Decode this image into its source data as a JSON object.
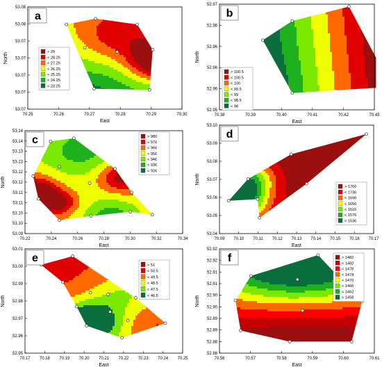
{
  "chart_data": [
    {
      "type": "heatmap",
      "panel_label": "a",
      "xlabel": "East",
      "ylabel": "North",
      "x_ticks": [
        "70.25",
        "70.26",
        "70.27",
        "70.28",
        "70.29",
        "70.30"
      ],
      "y_ticks": [
        "53.08",
        "53.08",
        "53.07",
        "53.07",
        "53.07",
        "53.07",
        "53.07"
      ],
      "legend": [
        "> 29",
        "< 28.25",
        "< 27.25",
        "< 26.25",
        "< 25.25",
        "< 24.25",
        "< 23.25"
      ],
      "legend_colors": [
        "#9b0f0f",
        "#e00000",
        "#ff6a00",
        "#f0ff00",
        "#7be800",
        "#1fb01f",
        "#0a6e3c"
      ],
      "sample_points": [
        [
          70.2625,
          53.0795
        ],
        [
          70.272,
          53.0805
        ],
        [
          70.2855,
          53.0795
        ],
        [
          70.2685,
          53.0755
        ],
        [
          70.279,
          53.0748
        ],
        [
          70.2905,
          53.0752
        ],
        [
          70.2715,
          53.0685
        ],
        [
          70.2895,
          53.0683
        ]
      ]
    },
    {
      "type": "heatmap",
      "panel_label": "b",
      "xlabel": "East",
      "ylabel": "North",
      "x_ticks": [
        "70.38",
        "70.39",
        "70.40",
        "70.41",
        "70.42",
        "70.43"
      ],
      "y_ticks": [
        "52.97",
        "52.96",
        "52.96",
        "52.96",
        "52.96",
        "52.95"
      ],
      "legend": [
        "> 100.5",
        "< 100.5",
        "< 100",
        "< 99.5",
        "< 99",
        "< 98.5",
        "< 98"
      ],
      "legend_colors": [
        "#9b0f0f",
        "#e00000",
        "#ff6a00",
        "#f0ff00",
        "#7be800",
        "#1fb01f",
        "#0a6e3c"
      ],
      "sample_points": [
        [
          70.394,
          52.9645
        ],
        [
          70.4035,
          52.9685
        ],
        [
          70.4218,
          52.9715
        ],
        [
          70.4355,
          52.9548
        ],
        [
          70.4035,
          52.9535
        ]
      ]
    },
    {
      "type": "heatmap",
      "panel_label": "c",
      "xlabel": "East",
      "ylabel": "North",
      "x_ticks": [
        "70.22",
        "70.24",
        "70.26",
        "70.28",
        "70.30",
        "70.32",
        "70.34"
      ],
      "y_ticks": [
        "53.14",
        "53.14",
        "53.13",
        "53.13",
        "53.12",
        "53.12",
        "53.11",
        "53.11",
        "53.10",
        "53.10",
        "53.09"
      ],
      "legend": [
        "> 980",
        "< 976",
        "< 966",
        "< 956",
        "< 946",
        "< 936",
        "< 926"
      ],
      "legend_colors": [
        "#9b0f0f",
        "#e00000",
        "#ff6a00",
        "#f0ff00",
        "#7be800",
        "#1fb01f",
        "#0a6e3c"
      ],
      "sample_points": [
        [
          70.2395,
          53.138
        ],
        [
          70.2572,
          53.1395
        ],
        [
          70.2462,
          53.1262
        ],
        [
          70.2262,
          53.1218
        ],
        [
          70.2692,
          53.1185
        ],
        [
          70.2885,
          53.1252
        ],
        [
          70.3012,
          53.1142
        ],
        [
          70.3168,
          53.1038
        ],
        [
          70.2302,
          53.1112
        ],
        [
          70.2462,
          53.1012
        ],
        [
          70.2702,
          53.1032
        ],
        [
          70.3002,
          53.1052
        ]
      ]
    },
    {
      "type": "heatmap",
      "panel_label": "d",
      "xlabel": "East",
      "ylabel": "North",
      "x_ticks": [
        "70.09",
        "70.10",
        "70.11",
        "70.12",
        "70.13",
        "70.14",
        "70.15",
        "70.16",
        "70.17"
      ],
      "y_ticks": [
        "53.10",
        "53.09",
        "53.08",
        "53.07",
        "53.06",
        "53.05",
        "53.04"
      ],
      "legend": [
        "> 1760",
        "< 1736",
        "< 1696",
        "< 1656",
        "< 1616",
        "< 1576",
        "< 1536"
      ],
      "legend_colors": [
        "#9b0f0f",
        "#e00000",
        "#ff6a00",
        "#f0ff00",
        "#7be800",
        "#1fb01f",
        "#0a6e3c"
      ],
      "sample_points": [
        [
          70.1662,
          53.1042
        ],
        [
          70.1272,
          53.0912
        ],
        [
          70.1048,
          53.0752
        ],
        [
          70.0948,
          53.0612
        ],
        [
          70.1098,
          53.0622
        ],
        [
          70.1108,
          53.0502
        ],
        [
          70.1352,
          53.0722
        ]
      ]
    },
    {
      "type": "heatmap",
      "panel_label": "e",
      "xlabel": "East",
      "ylabel": "North",
      "x_ticks": [
        "70.17",
        "70.18",
        "70.19",
        "70.20",
        "70.21",
        "70.22",
        "70.23",
        "70.24",
        "70.25"
      ],
      "y_ticks": [
        "53.01",
        "53.00",
        "52.99",
        "52.98",
        "52.97",
        "52.96",
        "52.95"
      ],
      "legend": [
        "> 51",
        "< 50.5",
        "< 49.5",
        "< 48.5",
        "< 47.5",
        "< 46.5"
      ],
      "legend_colors": [
        "#9b0f0f",
        "#e00000",
        "#ff6a00",
        "#f0ff00",
        "#7be800",
        "#0a6e3c"
      ],
      "sample_points": [
        [
          70.1782,
          53.0008
        ],
        [
          70.1942,
          53.0058
        ],
        [
          70.1892,
          52.9908
        ],
        [
          70.2032,
          52.9848
        ],
        [
          70.1962,
          52.9768
        ],
        [
          70.2122,
          52.9838
        ],
        [
          70.2262,
          52.9818
        ],
        [
          70.2412,
          52.9672
        ],
        [
          70.2192,
          52.9588
        ],
        [
          70.2222,
          52.9688
        ],
        [
          70.2012,
          52.9658
        ],
        [
          70.2132,
          52.9738
        ]
      ]
    },
    {
      "type": "heatmap",
      "panel_label": "f",
      "xlabel": "East",
      "ylabel": "North",
      "x_ticks": [
        "70.56",
        "70.57",
        "70.58",
        "70.59",
        "70.60",
        "70.61"
      ],
      "y_ticks": [
        "52.92",
        "52.92",
        "52.91",
        "52.91",
        "52.90",
        "52.90",
        "52.89",
        "52.89",
        "52.88",
        "52.88"
      ],
      "legend": [
        "> 1482",
        "< 1482",
        "< 1478",
        "< 1474",
        "< 1470",
        "< 1466",
        "< 1462",
        "< 1458"
      ],
      "legend_colors": [
        "#9b0f0f",
        "#c40000",
        "#ff0000",
        "#ff6a00",
        "#f0ff00",
        "#7be800",
        "#1fb01f",
        "#0a6e3c"
      ],
      "sample_points": [
        [
          70.5612,
          52.8988
        ],
        [
          70.5672,
          52.9098
        ],
        [
          70.5932,
          52.9192
        ],
        [
          70.6102,
          52.8982
        ],
        [
          70.6062,
          52.8802
        ],
        [
          70.5822,
          52.8802
        ],
        [
          70.5632,
          52.8852
        ],
        [
          70.5852,
          52.9082
        ],
        [
          70.5872,
          52.8942
        ]
      ]
    }
  ]
}
